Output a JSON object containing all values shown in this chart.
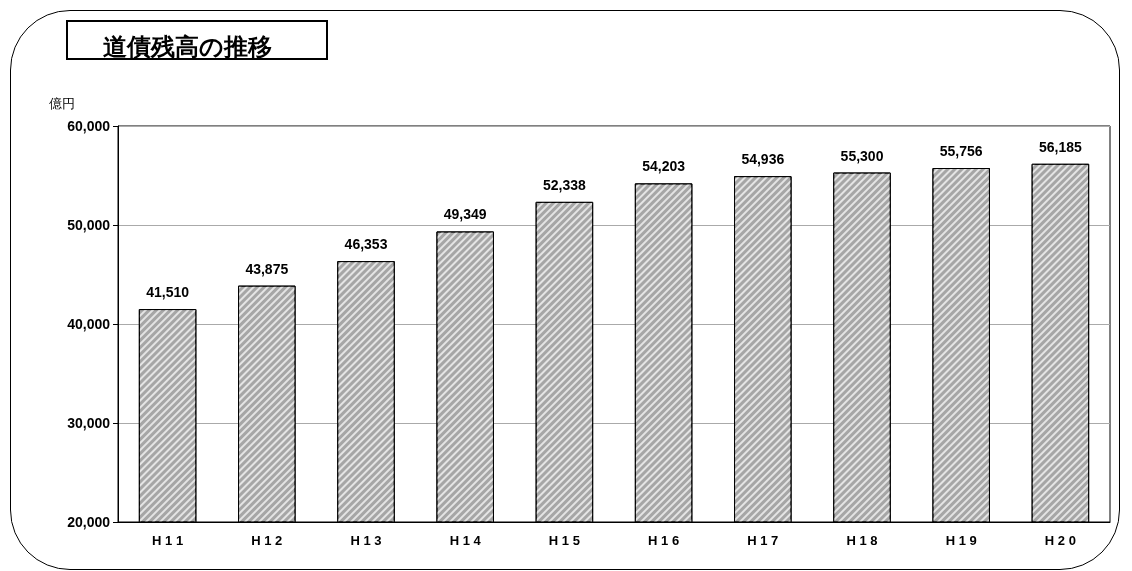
{
  "chart_data": {
    "type": "bar",
    "title": "道債残高の推移",
    "ylabel": "億円",
    "categories": [
      "H 1 1",
      "H 1 2",
      "H 1 3",
      "H 1 4",
      "H 1 5",
      "H 1 6",
      "H 1 7",
      "H 1 8",
      "H 1 9",
      "H 2 0"
    ],
    "values": [
      41510,
      43875,
      46353,
      49349,
      52338,
      54203,
      54936,
      55300,
      55756,
      56185
    ],
    "value_labels": [
      "41,510",
      "43,875",
      "46,353",
      "49,349",
      "52,338",
      "54,203",
      "54,936",
      "55,300",
      "55,756",
      "56,185"
    ],
    "color": "#a6a6a6",
    "ylim": [
      20000,
      60000
    ],
    "yticks": [
      {
        "value": 20000,
        "label": "20,000"
      },
      {
        "value": 30000,
        "label": "30,000"
      },
      {
        "value": 40000,
        "label": "40,000"
      },
      {
        "value": 50000,
        "label": "50,000"
      },
      {
        "value": 60000,
        "label": "60,000"
      }
    ],
    "grid": "y"
  }
}
